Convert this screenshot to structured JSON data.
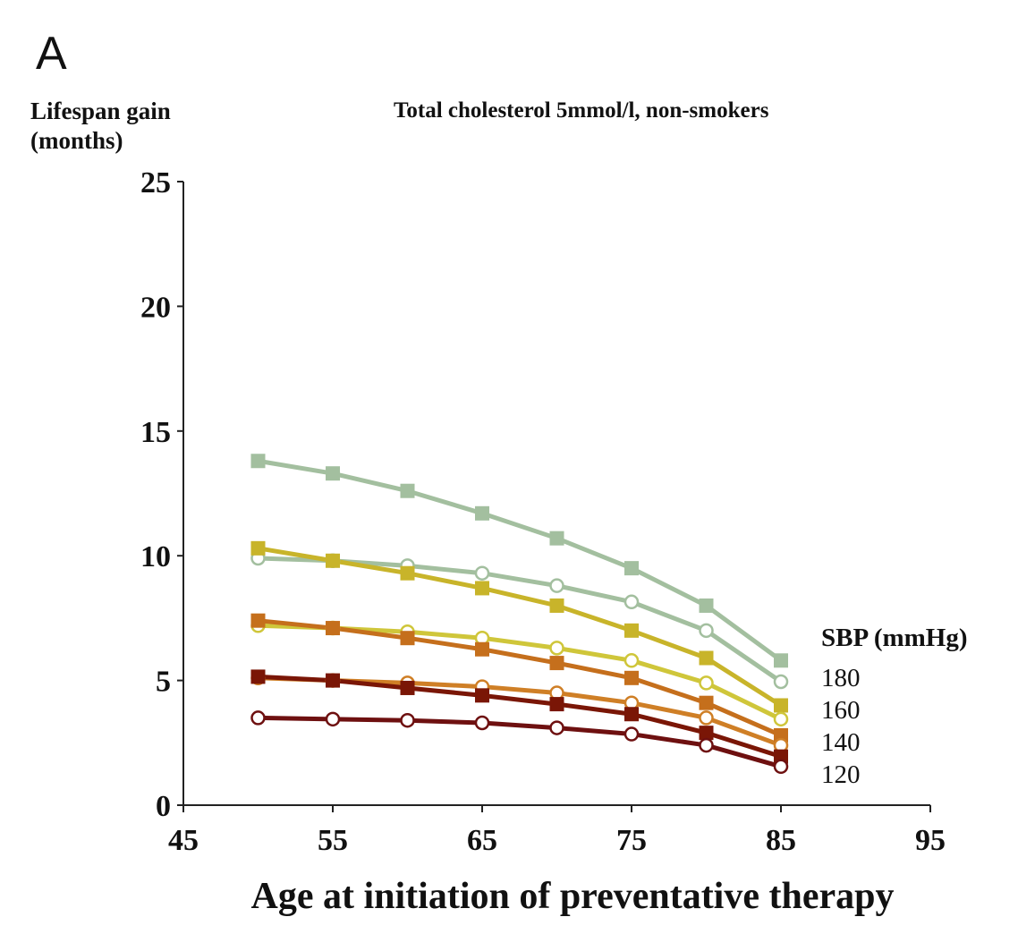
{
  "panel_label": "A",
  "chart_data": {
    "type": "line",
    "title": "Total cholesterol 5mmol/l, non-smokers",
    "xlabel": "Age at initiation of preventative therapy",
    "ylabel_lines": [
      "Lifespan gain",
      "(months)"
    ],
    "xlim": [
      45,
      95
    ],
    "ylim": [
      0,
      25
    ],
    "xticks": [
      45,
      55,
      65,
      75,
      85,
      95
    ],
    "yticks": [
      0,
      5,
      10,
      15,
      20,
      25
    ],
    "grid": false,
    "legend_title": "SBP (mmHg)",
    "legend_labels": [
      "180",
      "160",
      "140",
      "120"
    ],
    "legend_placement": "right",
    "x": [
      50,
      55,
      60,
      65,
      70,
      75,
      80,
      85
    ],
    "series": [
      {
        "name": "180 (square)",
        "marker": "square",
        "color": "#a3bf9f",
        "values": [
          13.8,
          13.3,
          12.6,
          11.7,
          10.7,
          9.5,
          8.0,
          5.8
        ]
      },
      {
        "name": "180 (circle)",
        "marker": "circle",
        "color": "#a3bf9f",
        "values": [
          9.9,
          9.8,
          9.6,
          9.3,
          8.8,
          8.15,
          7.0,
          4.95
        ]
      },
      {
        "name": "160 (square)",
        "marker": "square",
        "color": "#c8b42a",
        "values": [
          10.3,
          9.8,
          9.3,
          8.7,
          8.0,
          7.0,
          5.9,
          4.0
        ]
      },
      {
        "name": "160 (circle)",
        "marker": "circle",
        "color": "#cfc63a",
        "values": [
          7.2,
          7.1,
          6.95,
          6.7,
          6.3,
          5.8,
          4.9,
          3.45
        ]
      },
      {
        "name": "140 (square)",
        "marker": "square",
        "color": "#c56f1c",
        "values": [
          7.4,
          7.1,
          6.7,
          6.25,
          5.7,
          5.1,
          4.1,
          2.8
        ]
      },
      {
        "name": "140 (circle)",
        "marker": "circle",
        "color": "#cf7f26",
        "values": [
          5.1,
          5.0,
          4.9,
          4.75,
          4.5,
          4.1,
          3.5,
          2.4
        ]
      },
      {
        "name": "120 (square)",
        "marker": "square",
        "color": "#7a1606",
        "values": [
          5.15,
          5.0,
          4.7,
          4.4,
          4.05,
          3.65,
          2.9,
          1.95
        ]
      },
      {
        "name": "120 (circle)",
        "marker": "circle",
        "color": "#6e1010",
        "values": [
          3.5,
          3.45,
          3.4,
          3.3,
          3.1,
          2.85,
          2.4,
          1.55
        ]
      }
    ]
  }
}
